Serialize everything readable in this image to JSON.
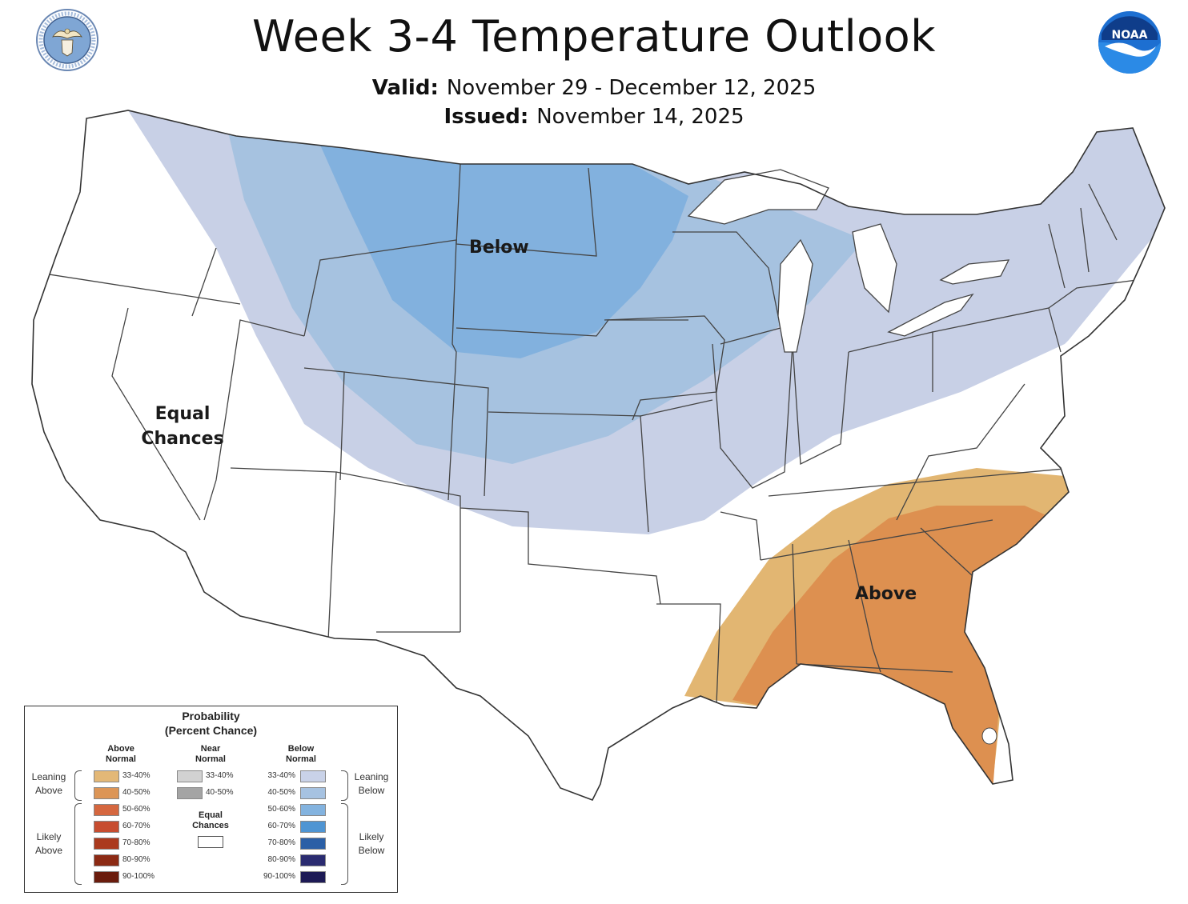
{
  "header": {
    "title": "Week 3-4 Temperature Outlook",
    "valid_label": "Valid:",
    "valid_value": "November 29 - December 12, 2025",
    "issued_label": "Issued:",
    "issued_value": "November 14, 2025",
    "right_logo_text": "NOAA"
  },
  "map": {
    "labels": {
      "below": "Below",
      "above": "Above",
      "equal": [
        "Equal",
        "Chances"
      ]
    },
    "colors": {
      "below_33_40": "#c8d0e6",
      "below_40_50": "#a6c2e0",
      "below_50_60": "#82b1de",
      "above_33_40": "#e2b672",
      "above_40_50": "#dd9050",
      "equal_chances": "#ffffff",
      "state_lines": "#444444"
    }
  },
  "legend": {
    "title": "Probability",
    "subtitle": "(Percent Chance)",
    "columns": {
      "above": [
        "Above",
        "Normal"
      ],
      "near": [
        "Near",
        "Normal"
      ],
      "below": [
        "Below",
        "Normal"
      ]
    },
    "above_items": [
      {
        "label": "33-40%",
        "color": "#e3b877"
      },
      {
        "label": "40-50%",
        "color": "#dc9556"
      },
      {
        "label": "50-60%",
        "color": "#d5673f"
      },
      {
        "label": "60-70%",
        "color": "#c74d30"
      },
      {
        "label": "70-80%",
        "color": "#ab3a1e"
      },
      {
        "label": "80-90%",
        "color": "#8c2a14"
      },
      {
        "label": "90-100%",
        "color": "#6a1c0d"
      }
    ],
    "near_items": [
      {
        "label": "33-40%",
        "color": "#d2d2d2"
      },
      {
        "label": "40-50%",
        "color": "#a4a4a4"
      }
    ],
    "equal_chances": [
      "Equal",
      "Chances"
    ],
    "below_items": [
      {
        "label": "33-40%",
        "color": "#c9d2e8"
      },
      {
        "label": "40-50%",
        "color": "#a6c2e1"
      },
      {
        "label": "50-60%",
        "color": "#83b3df"
      },
      {
        "label": "60-70%",
        "color": "#4f95d3"
      },
      {
        "label": "70-80%",
        "color": "#2b5fa6"
      },
      {
        "label": "80-90%",
        "color": "#2a2b70"
      },
      {
        "label": "90-100%",
        "color": "#1d1a55"
      }
    ],
    "side_labels": {
      "leaning_above": [
        "Leaning",
        "Above"
      ],
      "likely_above": [
        "Likely",
        "Above"
      ],
      "leaning_below": [
        "Leaning",
        "Below"
      ],
      "likely_below": [
        "Likely",
        "Below"
      ]
    }
  }
}
